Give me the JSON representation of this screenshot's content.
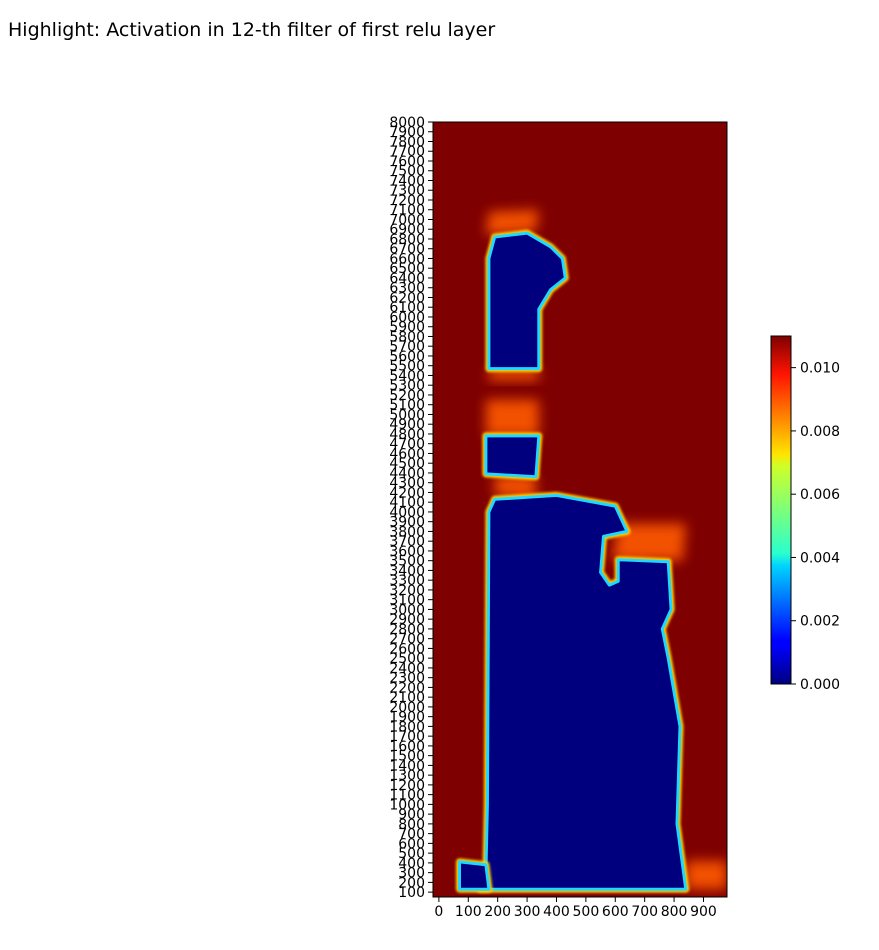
{
  "chart_data": {
    "type": "heatmap",
    "title": "Highlight: Activation in 12-th filter of first relu layer",
    "xlabel": "",
    "ylabel": "",
    "x_ticks": [
      "0",
      "100",
      "200",
      "300",
      "400",
      "500",
      "600",
      "700",
      "800",
      "900"
    ],
    "y_ticks": [
      "100",
      "200",
      "300",
      "400",
      "500",
      "600",
      "700",
      "800",
      "900",
      "1000",
      "1100",
      "1200",
      "1300",
      "1400",
      "1500",
      "1600",
      "1700",
      "1800",
      "1900",
      "2000",
      "2100",
      "2200",
      "2300",
      "2400",
      "2500",
      "2600",
      "2700",
      "2800",
      "2900",
      "3000",
      "3100",
      "3200",
      "3300",
      "3400",
      "3500",
      "3600",
      "3700",
      "3800",
      "3900",
      "4000",
      "4100",
      "4200",
      "4300",
      "4400",
      "4500",
      "4600",
      "4700",
      "4800",
      "4900",
      "5000",
      "5100",
      "5200",
      "5300",
      "5400",
      "5500",
      "5600",
      "5700",
      "5800",
      "5900",
      "6000",
      "6100",
      "6200",
      "6300",
      "6400",
      "6500",
      "6600",
      "6700",
      "6800",
      "6900",
      "7000",
      "7100",
      "7200",
      "7300",
      "7400",
      "7500",
      "7600",
      "7700",
      "7800",
      "7900",
      "8000"
    ],
    "xlim": [
      -20,
      980
    ],
    "ylim": [
      50,
      8000
    ],
    "colormap": "jet",
    "colorbar": {
      "range": [
        0.0,
        0.011
      ],
      "ticks": [
        "0.000",
        "0.002",
        "0.004",
        "0.006",
        "0.008",
        "0.010"
      ]
    },
    "background_value": 0.011,
    "low_regions": [
      {
        "name": "lower-body",
        "polygon": [
          [
            140,
            130
          ],
          [
            160,
            300
          ],
          [
            165,
            1000
          ],
          [
            170,
            4000
          ],
          [
            190,
            4130
          ],
          [
            400,
            4170
          ],
          [
            600,
            4060
          ],
          [
            640,
            3800
          ],
          [
            560,
            3750
          ],
          [
            550,
            3380
          ],
          [
            580,
            3250
          ],
          [
            610,
            3290
          ],
          [
            610,
            3510
          ],
          [
            780,
            3490
          ],
          [
            790,
            3000
          ],
          [
            760,
            2800
          ],
          [
            780,
            2500
          ],
          [
            820,
            1800
          ],
          [
            810,
            800
          ],
          [
            840,
            130
          ]
        ]
      },
      {
        "name": "left-foot",
        "polygon": [
          [
            70,
            130
          ],
          [
            170,
            130
          ],
          [
            160,
            380
          ],
          [
            70,
            410
          ]
        ]
      },
      {
        "name": "mid-block",
        "polygon": [
          [
            160,
            4390
          ],
          [
            330,
            4360
          ],
          [
            340,
            4780
          ],
          [
            160,
            4780
          ]
        ]
      },
      {
        "name": "upper-block",
        "polygon": [
          [
            170,
            5470
          ],
          [
            340,
            5470
          ],
          [
            340,
            6080
          ],
          [
            380,
            6280
          ],
          [
            430,
            6400
          ],
          [
            420,
            6600
          ],
          [
            380,
            6720
          ],
          [
            300,
            6860
          ],
          [
            190,
            6820
          ],
          [
            170,
            6600
          ]
        ]
      }
    ],
    "warm_regions": [
      {
        "name": "glow-above-upper-block",
        "polygon": [
          [
            160,
            6840
          ],
          [
            330,
            6880
          ],
          [
            340,
            7100
          ],
          [
            170,
            7080
          ]
        ]
      },
      {
        "name": "glow-below-upper-block",
        "polygon": [
          [
            170,
            5350
          ],
          [
            340,
            5350
          ],
          [
            340,
            5470
          ],
          [
            170,
            5470
          ]
        ]
      },
      {
        "name": "glow-between-blocks",
        "polygon": [
          [
            160,
            4780
          ],
          [
            340,
            4780
          ],
          [
            340,
            5150
          ],
          [
            160,
            5150
          ]
        ]
      },
      {
        "name": "glow-above-body",
        "polygon": [
          [
            190,
            4170
          ],
          [
            330,
            4140
          ],
          [
            330,
            4370
          ],
          [
            190,
            4370
          ]
        ]
      },
      {
        "name": "glow-right-step",
        "polygon": [
          [
            590,
            3500
          ],
          [
            830,
            3500
          ],
          [
            840,
            3880
          ],
          [
            610,
            3880
          ]
        ]
      },
      {
        "name": "glow-bottom-right",
        "polygon": [
          [
            840,
            130
          ],
          [
            980,
            130
          ],
          [
            980,
            420
          ],
          [
            840,
            420
          ]
        ]
      }
    ]
  }
}
